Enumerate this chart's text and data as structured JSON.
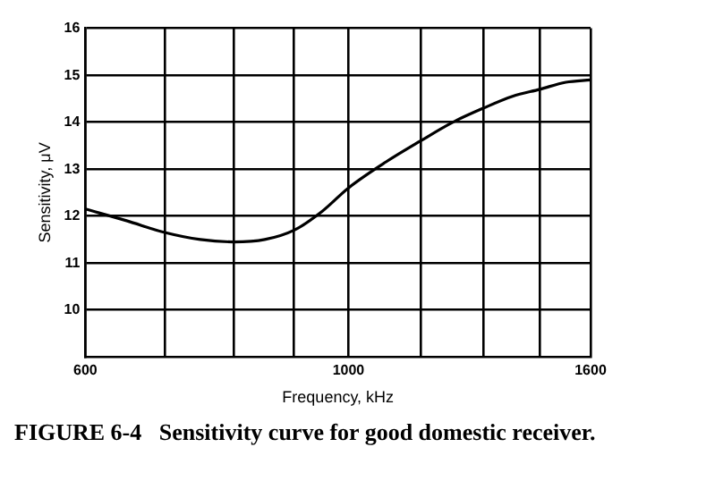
{
  "chart_data": {
    "type": "line",
    "title": "FIGURE 6-4   Sensitivity curve for good domestic receiver.",
    "xlabel": "Frequency, kHz",
    "ylabel": "Sensitivity, μV",
    "x": [
      600,
      650,
      700,
      750,
      800,
      850,
      900,
      950,
      1000,
      1075,
      1150,
      1225,
      1300,
      1375,
      1450,
      1525,
      1600
    ],
    "series": [
      {
        "color": "#000000",
        "values": [
          12.15,
          11.9,
          11.65,
          11.5,
          11.45,
          11.5,
          11.7,
          12.1,
          12.6,
          13.15,
          13.6,
          14.0,
          14.3,
          14.55,
          14.7,
          14.85,
          14.9
        ]
      }
    ],
    "log": "x",
    "xlim": [
      600,
      1600
    ],
    "xticks": [
      600,
      {
        "value": 700,
        "label": null
      },
      {
        "value": 800,
        "label": null
      },
      {
        "value": 900,
        "label": null
      },
      1000,
      {
        "value": 1150,
        "label": null
      },
      {
        "value": 1300,
        "label": null
      },
      {
        "value": 1450,
        "label": null
      },
      1600
    ],
    "ylim": [
      9,
      16
    ],
    "yticks": [
      10,
      11,
      12,
      13,
      14,
      15,
      16
    ],
    "grid": true,
    "marker": "none",
    "line_style": "solid",
    "legend": false
  }
}
